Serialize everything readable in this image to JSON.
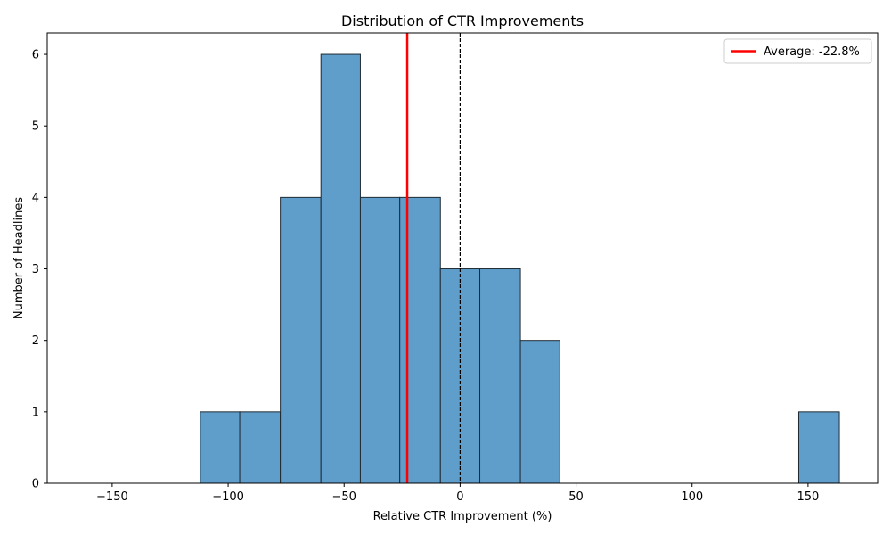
{
  "chart_data": {
    "type": "bar",
    "title": "Distribution of CTR Improvements",
    "xlabel": "Relative CTR Improvement (%)",
    "ylabel": "Number of Headlines",
    "xlim": [
      -178,
      180
    ],
    "ylim": [
      0,
      6.3
    ],
    "xticks": [
      -150,
      -100,
      -50,
      0,
      50,
      100,
      150
    ],
    "yticks": [
      0,
      1,
      2,
      3,
      4,
      5,
      6
    ],
    "bins": [
      {
        "x0": -112,
        "x1": -95,
        "count": 1
      },
      {
        "x0": -95,
        "x1": -77.5,
        "count": 1
      },
      {
        "x0": -77.5,
        "x1": -60,
        "count": 4
      },
      {
        "x0": -60,
        "x1": -43,
        "count": 6
      },
      {
        "x0": -43,
        "x1": -26,
        "count": 4
      },
      {
        "x0": -26,
        "x1": -8.5,
        "count": 4
      },
      {
        "x0": -8.5,
        "x1": 8.5,
        "count": 3
      },
      {
        "x0": 8.5,
        "x1": 26,
        "count": 3
      },
      {
        "x0": 26,
        "x1": 43,
        "count": 2
      },
      {
        "x0": 146,
        "x1": 163.5,
        "count": 1
      }
    ],
    "bar_color": "#5f9ecb",
    "average_line": {
      "value": -22.8,
      "color": "#ff0000",
      "label": "Average: -22.8%"
    },
    "zero_line": {
      "value": 0,
      "style": "dashed",
      "color": "#000000"
    },
    "legend_position": "top-right",
    "grid": false
  }
}
